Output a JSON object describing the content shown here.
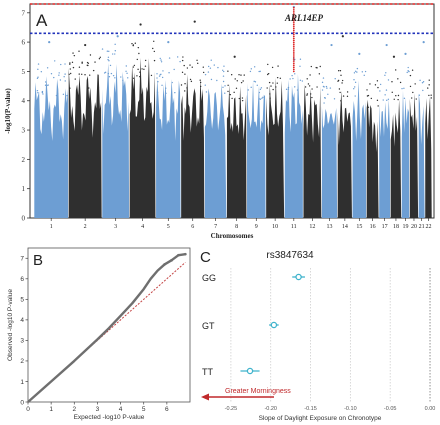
{
  "panels": {
    "a": "A",
    "b": "B",
    "c": "C"
  },
  "colors": {
    "light": "#6d9ed3",
    "dark": "#2f2f2f",
    "genome_wide": "#dd2222",
    "suggestive": "#2233bb",
    "qq_points": "#6f6f6f",
    "qq_line": "#c44444",
    "forest": "#3fb3cc",
    "arrow": "#c0292b"
  },
  "chart_data": [
    {
      "type": "scatter",
      "panel": "A",
      "title": "",
      "xlabel": "Chromosomes",
      "ylabel": "-log10(P-value)",
      "ylim": [
        0,
        7.3
      ],
      "yticks": [
        0,
        1,
        2,
        3,
        4,
        5,
        6,
        7
      ],
      "categories": [
        "1",
        "2",
        "3",
        "4",
        "5",
        "6",
        "7",
        "8",
        "9",
        "10",
        "11",
        "12",
        "13",
        "14",
        "15",
        "16",
        "17",
        "18",
        "19",
        "20",
        "21",
        "22"
      ],
      "colors_alternate": [
        "light",
        "dark"
      ],
      "thresholds": [
        {
          "name": "genome-wide",
          "value": 7.3,
          "color": "genome_wide"
        },
        {
          "name": "suggestive",
          "value": 6.3,
          "color": "suggestive"
        }
      ],
      "column_peak": [
        4.9,
        5.2,
        5.4,
        5.5,
        5.0,
        5.0,
        4.9,
        4.6,
        4.7,
        4.8,
        5.1,
        4.7,
        4.5,
        4.6,
        4.7,
        4.3,
        4.6,
        4.6,
        4.7,
        4.6,
        4.6,
        4.5
      ],
      "top_hits": [
        {
          "chr": "1",
          "y": 6.0
        },
        {
          "chr": "2",
          "y": 5.9
        },
        {
          "chr": "3",
          "y": 6.2
        },
        {
          "chr": "4",
          "y": 6.6
        },
        {
          "chr": "5",
          "y": 6.0
        },
        {
          "chr": "6",
          "y": 6.7
        },
        {
          "chr": "8",
          "y": 5.5
        },
        {
          "chr": "11",
          "y": 7.2
        },
        {
          "chr": "13",
          "y": 5.9
        },
        {
          "chr": "14",
          "y": 6.2
        },
        {
          "chr": "15",
          "y": 5.6
        },
        {
          "chr": "17",
          "y": 5.9
        },
        {
          "chr": "18",
          "y": 5.5
        },
        {
          "chr": "19",
          "y": 5.6
        },
        {
          "chr": "21",
          "y": 6.0
        }
      ],
      "highlight": {
        "chr": "11",
        "y_from": 5.0,
        "y_to": 7.2,
        "label": "ARL14EP"
      }
    },
    {
      "type": "scatter",
      "panel": "B",
      "title": "",
      "xlabel": "Expected -log10 P-value",
      "ylabel": "Observed -log10 P-value",
      "xlim": [
        0,
        7
      ],
      "ylim": [
        0,
        7.5
      ],
      "xticks": [
        0,
        1,
        2,
        3,
        4,
        5,
        6
      ],
      "yticks": [
        0,
        1,
        2,
        3,
        4,
        5,
        6,
        7
      ],
      "observed_curve": [
        [
          0,
          0
        ],
        [
          1,
          1
        ],
        [
          2,
          2
        ],
        [
          3,
          3.05
        ],
        [
          3.5,
          3.6
        ],
        [
          4,
          4.2
        ],
        [
          4.5,
          4.8
        ],
        [
          5,
          5.5
        ],
        [
          5.3,
          6.0
        ],
        [
          5.6,
          6.4
        ],
        [
          5.9,
          6.7
        ],
        [
          6.2,
          6.9
        ],
        [
          6.5,
          7.15
        ],
        [
          6.8,
          7.2
        ]
      ],
      "reference_line": [
        [
          0,
          0
        ],
        [
          6.8,
          6.8
        ]
      ]
    },
    {
      "type": "scatter",
      "panel": "C",
      "title": "rs3847634",
      "xlabel": "Slope of Daylight Exposure on Chronotype",
      "ylabel": "",
      "xlim": [
        -0.28,
        0.005
      ],
      "xticks": [
        "-0.25",
        "-0.20",
        "-0.15",
        "-0.10",
        "-0.05",
        "0.00"
      ],
      "xtick_values": [
        -0.25,
        -0.2,
        -0.15,
        -0.1,
        -0.05,
        0.0
      ],
      "categories": [
        "GG",
        "GT",
        "TT"
      ],
      "estimates": [
        {
          "genotype": "GG",
          "value": -0.165,
          "lo": -0.173,
          "hi": -0.157
        },
        {
          "genotype": "GT",
          "value": -0.196,
          "lo": -0.202,
          "hi": -0.19
        },
        {
          "genotype": "TT",
          "value": -0.226,
          "lo": -0.238,
          "hi": -0.214
        }
      ],
      "annotation": "Greater Morningness"
    }
  ]
}
